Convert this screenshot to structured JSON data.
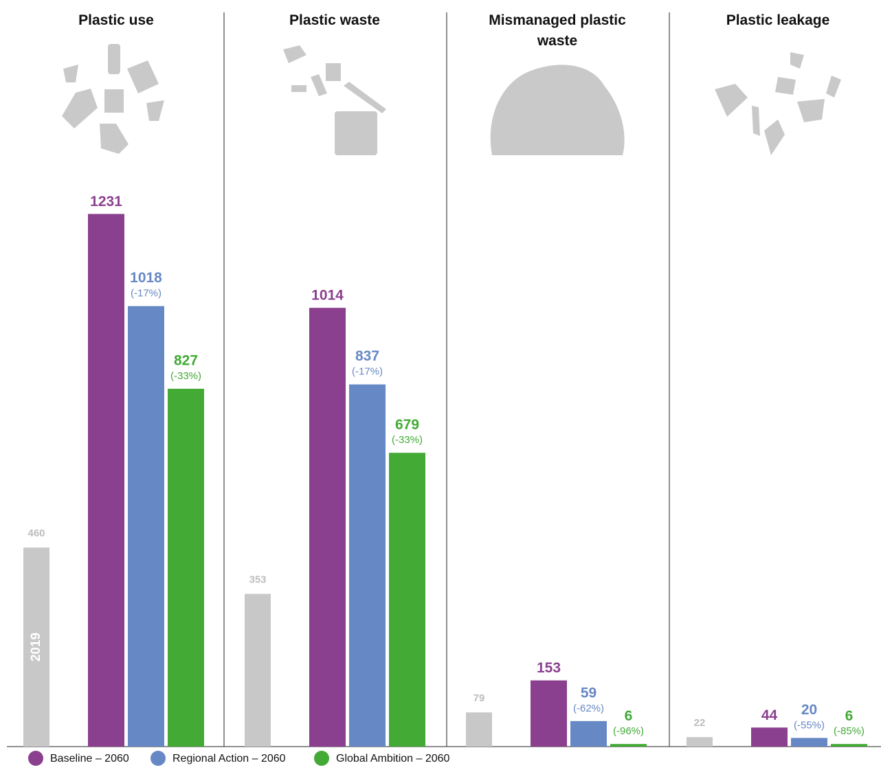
{
  "chart_data": {
    "type": "bar",
    "categories": [
      "Plastic use",
      "Plastic waste",
      "Mismanaged plastic waste",
      "Plastic leakage"
    ],
    "series": [
      {
        "name": "2019",
        "color": "#c8c8c8",
        "values": [
          460,
          353,
          79,
          22
        ]
      },
      {
        "name": "Baseline – 2060",
        "color": "#8b3f8f",
        "values": [
          1231,
          1014,
          153,
          44
        ]
      },
      {
        "name": "Regional Action – 2060",
        "color": "#6688c4",
        "values": [
          1018,
          837,
          59,
          20
        ],
        "change_labels": [
          "(-17%)",
          "(-17%)",
          "(-62%)",
          "(-55%)"
        ]
      },
      {
        "name": "Global Ambition – 2060",
        "color": "#42aa35",
        "values": [
          827,
          679,
          6,
          6
        ],
        "change_labels": [
          "(-33%)",
          "(-33%)",
          "(-96%)",
          "(-85%)"
        ]
      }
    ],
    "ylim": [
      0,
      1300
    ],
    "grid": false
  }
}
